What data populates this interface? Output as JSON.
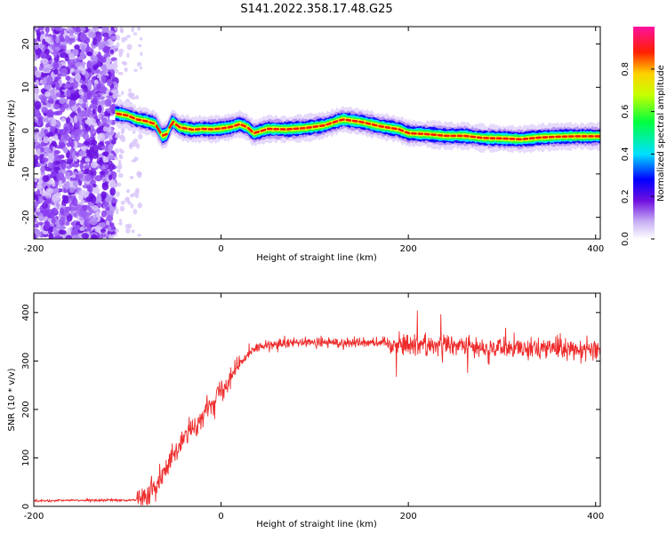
{
  "figure": {
    "title": "S141.2022.358.17.48.G25"
  },
  "chart_data": [
    {
      "type": "heatmap",
      "xlabel": "Height of straight line (km)",
      "ylabel": "Frequency (Hz)",
      "xlim": [
        -200,
        405
      ],
      "ylim": [
        -25,
        24
      ],
      "xticks": [
        -200,
        0,
        200,
        400
      ],
      "yticks": [
        -20,
        -10,
        0,
        10,
        20
      ],
      "colorbar": {
        "label": "Normalized spectral amplitude",
        "range": [
          0,
          1
        ],
        "ticks": [
          0.0,
          0.2,
          0.4,
          0.6,
          0.8
        ]
      },
      "ridge": {
        "x": [
          -113,
          -100,
          -90,
          -80,
          -70,
          -63,
          -58,
          -52,
          -45,
          -40,
          -30,
          -20,
          -10,
          0,
          10,
          20,
          28,
          35,
          50,
          70,
          90,
          110,
          130,
          150,
          170,
          190,
          200,
          220,
          240,
          260,
          280,
          300,
          320,
          340,
          360,
          380,
          400,
          405
        ],
        "y": [
          4,
          3.5,
          2.6,
          2.2,
          1.5,
          -1.2,
          -0.8,
          2.2,
          0.8,
          0.6,
          0.2,
          0.4,
          0.3,
          0.5,
          0.8,
          1.5,
          0.8,
          -0.6,
          0.4,
          0.3,
          0.6,
          1.2,
          2.6,
          2.0,
          1.0,
          0.3,
          -0.6,
          -0.8,
          -1.2,
          -1.2,
          -1.7,
          -1.8,
          -2.0,
          -1.6,
          -1.4,
          -1.3,
          -1.3,
          -1.3
        ]
      },
      "noise_region": {
        "x": [
          -200,
          -113
        ],
        "y": [
          -25,
          24
        ]
      }
    },
    {
      "type": "line",
      "xlabel": "Height of straight line (km)",
      "ylabel": "SNR (10 * v/v)",
      "xlim": [
        -200,
        405
      ],
      "ylim": [
        0,
        440
      ],
      "xticks": [
        -200,
        0,
        200,
        400
      ],
      "yticks": [
        0,
        100,
        200,
        300,
        400
      ],
      "color": "#ee2c2c",
      "series": {
        "x": [
          -200,
          -180,
          -160,
          -140,
          -120,
          -100,
          -90,
          -80,
          -70,
          -60,
          -50,
          -40,
          -30,
          -20,
          -10,
          0,
          10,
          20,
          30,
          40,
          60,
          80,
          100,
          120,
          140,
          160,
          180,
          200,
          220,
          240,
          260,
          280,
          300,
          320,
          340,
          360,
          380,
          400,
          405
        ],
        "y": [
          12,
          11,
          13,
          12,
          13,
          12,
          14,
          20,
          45,
          75,
          105,
          140,
          160,
          185,
          215,
          240,
          270,
          295,
          320,
          328,
          333,
          337,
          338,
          338,
          338,
          340,
          337,
          335,
          335,
          333,
          330,
          330,
          325,
          327,
          328,
          325,
          325,
          325,
          325
        ]
      }
    }
  ]
}
